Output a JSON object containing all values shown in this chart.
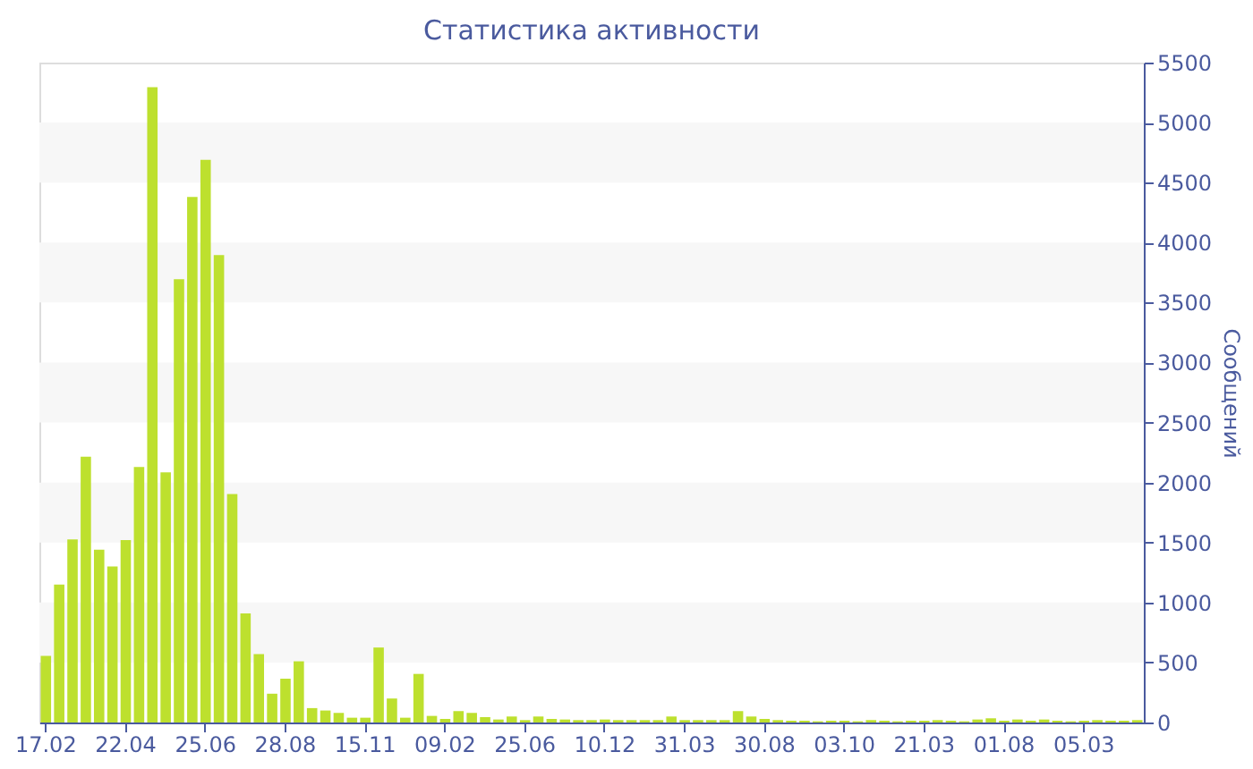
{
  "chart_data": {
    "type": "bar",
    "title": "Статистика активности",
    "y2label": "Сообщений",
    "categories": [
      "17.02",
      null,
      null,
      null,
      null,
      null,
      "22.04",
      null,
      null,
      null,
      null,
      null,
      "25.06",
      null,
      null,
      null,
      null,
      null,
      "28.08",
      null,
      null,
      null,
      null,
      null,
      "15.11",
      null,
      null,
      null,
      null,
      null,
      "09.02",
      null,
      null,
      null,
      null,
      null,
      "25.06",
      null,
      null,
      null,
      null,
      null,
      "10.12",
      null,
      null,
      null,
      null,
      null,
      "31.03",
      null,
      null,
      null,
      null,
      null,
      "30.08",
      null,
      null,
      null,
      null,
      null,
      "03.10",
      null,
      null,
      null,
      null,
      null,
      "21.03",
      null,
      null,
      null,
      null,
      null,
      "01.08",
      null,
      null,
      null,
      null,
      null,
      "05.03",
      null,
      null,
      null,
      null
    ],
    "series": [
      {
        "axis": "y2",
        "color": "#bde02e",
        "values": [
          555,
          1150,
          1525,
          2215,
          1440,
          1300,
          1520,
          2130,
          5295,
          2085,
          3695,
          4380,
          4690,
          3895,
          1905,
          910,
          570,
          240,
          365,
          510,
          120,
          100,
          80,
          40,
          40,
          625,
          200,
          40,
          405,
          55,
          30,
          95,
          80,
          45,
          25,
          50,
          20,
          50,
          30,
          25,
          20,
          20,
          25,
          20,
          20,
          20,
          20,
          50,
          20,
          20,
          20,
          20,
          95,
          50,
          30,
          20,
          15,
          15,
          10,
          15,
          15,
          10,
          20,
          15,
          10,
          15,
          15,
          20,
          15,
          10,
          25,
          35,
          15,
          25,
          15,
          25,
          15,
          10,
          15,
          20,
          15,
          15,
          20
        ]
      }
    ],
    "y2lim": [
      0,
      5500
    ],
    "y2ticks": [
      0,
      500,
      1000,
      1500,
      2000,
      2500,
      3000,
      3500,
      4000,
      4500,
      5000,
      5500
    ],
    "bands": [
      {
        "axis": "y2",
        "from": 500,
        "to": 1000,
        "color": "#f7f7f7"
      },
      {
        "axis": "y2",
        "from": 1500,
        "to": 2000,
        "color": "#f7f7f7"
      },
      {
        "axis": "y2",
        "from": 2500,
        "to": 3000,
        "color": "#f7f7f7"
      },
      {
        "axis": "y2",
        "from": 3500,
        "to": 4000,
        "color": "#f7f7f7"
      },
      {
        "axis": "y2",
        "from": 4500,
        "to": 5000,
        "color": "#f7f7f7"
      }
    ]
  }
}
